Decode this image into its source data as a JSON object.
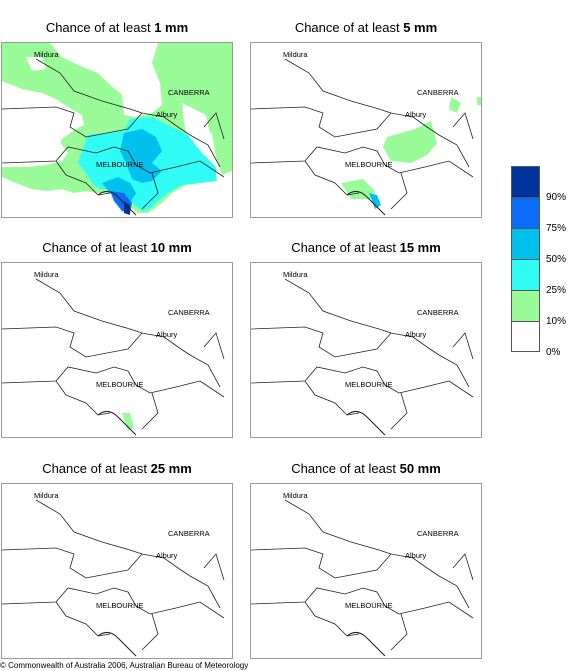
{
  "panels": [
    {
      "prefix": "Chance of at least ",
      "amount": "1 mm"
    },
    {
      "prefix": "Chance of at least ",
      "amount": "5 mm"
    },
    {
      "prefix": "Chance of at least ",
      "amount": "10 mm"
    },
    {
      "prefix": "Chance of at least ",
      "amount": "15 mm"
    },
    {
      "prefix": "Chance of at least ",
      "amount": "25 mm"
    },
    {
      "prefix": "Chance of at least ",
      "amount": "50 mm"
    }
  ],
  "places": {
    "mildura": "Mildura",
    "canberra": "CANBERRA",
    "albury": "Albury",
    "melbourne": "MELBOURNE"
  },
  "legend": {
    "labels": [
      "90%",
      "75%",
      "50%",
      "25%",
      "10%",
      "0%"
    ],
    "colors": [
      "#00349c",
      "#0a6cf5",
      "#00c0ee",
      "#30fcf6",
      "#99fc99",
      "#ffffff"
    ]
  },
  "copyright": "© Commonwealth of Australia 2006, Australian Bureau of Meteorology"
}
